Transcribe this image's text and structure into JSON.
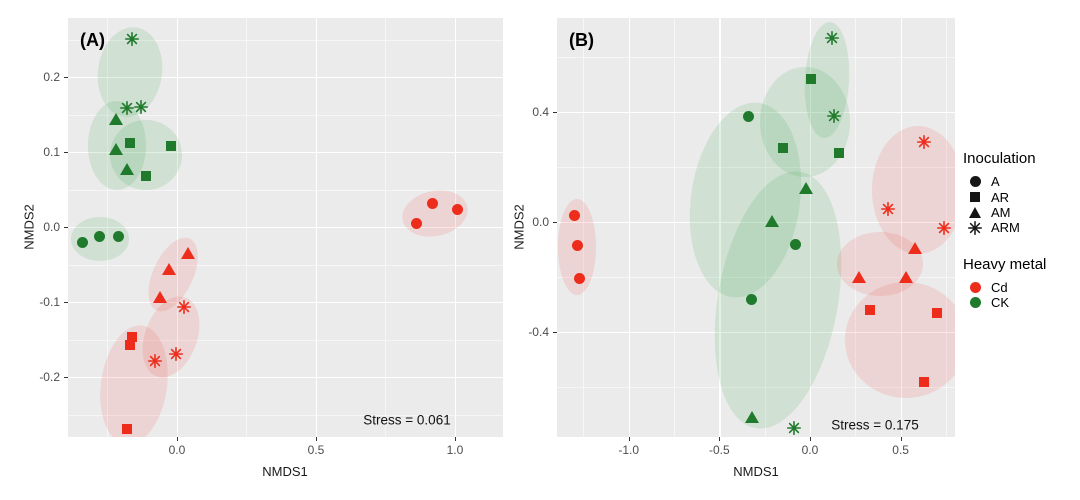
{
  "colors": {
    "cd": "#EE2C1C",
    "ck": "#1F7A2C",
    "cd_ellipse_fill": "rgba(240,80,70,0.14)",
    "ck_ellipse_fill": "rgba(70,170,85,0.16)",
    "panel_background": "#EBEBEB",
    "gridline": "#FFFFFF",
    "tick_text": "#4D4D4D",
    "legend_marker_black": "#151515"
  },
  "legend": {
    "inoculation_title": "Inoculation",
    "inoculation_items": [
      {
        "shape": "circle",
        "label": "A"
      },
      {
        "shape": "square",
        "label": "AR"
      },
      {
        "shape": "triangle",
        "label": "AM"
      },
      {
        "shape": "asterisk",
        "label": "ARM"
      }
    ],
    "metal_title": "Heavy metal",
    "metal_items": [
      {
        "label": "Cd",
        "color_key": "cd"
      },
      {
        "label": "CK",
        "color_key": "ck"
      }
    ]
  },
  "chart_data": [
    {
      "type": "scatter",
      "panel_label": "(A)",
      "stress_label": "Stress = 0.061",
      "xlabel": "NMDS1",
      "ylabel": "NMDS2",
      "xlim": [
        -0.392,
        1.173
      ],
      "ylim": [
        -0.28,
        0.2787
      ],
      "xticks": [
        {
          "v": 0.0,
          "label": "0.0"
        },
        {
          "v": 0.5,
          "label": "0.5"
        },
        {
          "v": 1.0,
          "label": "1.0"
        }
      ],
      "yticks": [
        {
          "v": 0.2,
          "label": "0.2"
        },
        {
          "v": 0.1,
          "label": "0.1"
        },
        {
          "v": 0.0,
          "label": "0.0"
        },
        {
          "v": -0.1,
          "label": "-0.1"
        },
        {
          "v": -0.2,
          "label": "-0.2"
        }
      ],
      "xminor": [
        -0.25,
        0.25,
        0.75
      ],
      "yminor": [
        0.25,
        0.15,
        0.05,
        -0.05,
        -0.15,
        -0.25
      ],
      "groups": [
        {
          "metal": "CK",
          "inoculation": "A",
          "shape": "circle",
          "points": [
            [
              -0.34,
              -0.021
            ],
            [
              -0.28,
              -0.013
            ],
            [
              -0.21,
              -0.013
            ]
          ]
        },
        {
          "metal": "CK",
          "inoculation": "AR",
          "shape": "square",
          "points": [
            [
              -0.17,
              0.112
            ],
            [
              -0.02,
              0.108
            ],
            [
              -0.11,
              0.068
            ]
          ]
        },
        {
          "metal": "CK",
          "inoculation": "AM",
          "shape": "triangle",
          "points": [
            [
              -0.22,
              0.143
            ],
            [
              -0.22,
              0.103
            ],
            [
              -0.18,
              0.077
            ]
          ]
        },
        {
          "metal": "CK",
          "inoculation": "ARM",
          "shape": "asterisk",
          "points": [
            [
              -0.16,
              0.251
            ],
            [
              -0.18,
              0.159
            ],
            [
              -0.13,
              0.16
            ]
          ]
        },
        {
          "metal": "Cd",
          "inoculation": "A",
          "shape": "circle",
          "points": [
            [
              0.86,
              0.005
            ],
            [
              0.92,
              0.032
            ],
            [
              1.01,
              0.024
            ]
          ]
        },
        {
          "metal": "Cd",
          "inoculation": "AR",
          "shape": "square",
          "points": [
            [
              -0.16,
              -0.146
            ],
            [
              -0.17,
              -0.157
            ],
            [
              -0.18,
              -0.269
            ]
          ]
        },
        {
          "metal": "Cd",
          "inoculation": "AM",
          "shape": "triangle",
          "points": [
            [
              0.04,
              -0.035
            ],
            [
              -0.03,
              -0.056
            ],
            [
              -0.06,
              -0.094
            ]
          ]
        },
        {
          "metal": "Cd",
          "inoculation": "ARM",
          "shape": "asterisk",
          "points": [
            [
              0.025,
              -0.107
            ],
            [
              -0.004,
              -0.169
            ],
            [
              -0.08,
              -0.179
            ]
          ]
        }
      ],
      "ellipses": [
        {
          "metal": "CK",
          "cx": -0.17,
          "cy": 0.207,
          "rx": 0.115,
          "ry": 0.06,
          "rot": 8
        },
        {
          "metal": "CK",
          "cx": -0.215,
          "cy": 0.109,
          "rx": 0.104,
          "ry": 0.059,
          "rot": 0
        },
        {
          "metal": "CK",
          "cx": -0.112,
          "cy": 0.096,
          "rx": 0.129,
          "ry": 0.047,
          "rot": 0
        },
        {
          "metal": "CK",
          "cx": -0.277,
          "cy": -0.016,
          "rx": 0.104,
          "ry": 0.029,
          "rot": 0
        },
        {
          "metal": "Cd",
          "cx": 0.928,
          "cy": 0.018,
          "rx": 0.119,
          "ry": 0.03,
          "rot": -12
        },
        {
          "metal": "Cd",
          "cx": -0.014,
          "cy": -0.064,
          "rx": 0.072,
          "ry": 0.053,
          "rot": 25
        },
        {
          "metal": "Cd",
          "cx": -0.02,
          "cy": -0.146,
          "rx": 0.094,
          "ry": 0.056,
          "rot": 20
        },
        {
          "metal": "Cd",
          "cx": -0.155,
          "cy": -0.211,
          "rx": 0.119,
          "ry": 0.08,
          "rot": 8
        }
      ]
    },
    {
      "type": "scatter",
      "panel_label": "(B)",
      "stress_label": "Stress = 0.175",
      "xlabel": "NMDS1",
      "ylabel": "NMDS2",
      "xlim": [
        -1.3955,
        0.8
      ],
      "ylim": [
        -0.7818,
        0.7418
      ],
      "xticks": [
        {
          "v": -1.0,
          "label": "-1.0"
        },
        {
          "v": -0.5,
          "label": "-0.5"
        },
        {
          "v": 0.0,
          "label": "0.0"
        },
        {
          "v": 0.5,
          "label": "0.5"
        }
      ],
      "yticks": [
        {
          "v": 0.4,
          "label": "0.4"
        },
        {
          "v": 0.0,
          "label": "0.0"
        },
        {
          "v": -0.4,
          "label": "-0.4"
        }
      ],
      "xminor": [
        -1.25,
        -0.75,
        -0.25,
        0.25,
        0.75
      ],
      "yminor": [
        0.6,
        0.2,
        -0.2,
        -0.6
      ],
      "groups": [
        {
          "metal": "Cd",
          "inoculation": "A",
          "shape": "circle",
          "points": [
            [
              -1.3,
              0.025
            ],
            [
              -1.28,
              -0.087
            ],
            [
              -1.27,
              -0.207
            ]
          ]
        },
        {
          "metal": "Cd",
          "inoculation": "AR",
          "shape": "square",
          "points": [
            [
              0.33,
              -0.32
            ],
            [
              0.7,
              -0.33
            ],
            [
              0.63,
              -0.58
            ]
          ]
        },
        {
          "metal": "Cd",
          "inoculation": "AM",
          "shape": "triangle",
          "points": [
            [
              0.58,
              -0.095
            ],
            [
              0.27,
              -0.2
            ],
            [
              0.53,
              -0.2
            ]
          ]
        },
        {
          "metal": "Cd",
          "inoculation": "ARM",
          "shape": "asterisk",
          "points": [
            [
              0.63,
              0.29
            ],
            [
              0.43,
              0.047
            ],
            [
              0.74,
              -0.022
            ]
          ]
        },
        {
          "metal": "CK",
          "inoculation": "A",
          "shape": "circle",
          "points": [
            [
              -0.34,
              0.385
            ],
            [
              -0.08,
              -0.08
            ],
            [
              -0.32,
              -0.28
            ]
          ]
        },
        {
          "metal": "CK",
          "inoculation": "AR",
          "shape": "square",
          "points": [
            [
              0.005,
              0.52
            ],
            [
              -0.15,
              0.27
            ],
            [
              0.16,
              0.25
            ]
          ]
        },
        {
          "metal": "CK",
          "inoculation": "AM",
          "shape": "triangle",
          "points": [
            [
              -0.02,
              0.12
            ],
            [
              -0.21,
              0.0
            ],
            [
              -0.32,
              -0.71
            ]
          ]
        },
        {
          "metal": "CK",
          "inoculation": "ARM",
          "shape": "asterisk",
          "points": [
            [
              0.12,
              0.67
            ],
            [
              0.13,
              0.385
            ],
            [
              -0.09,
              -0.75
            ]
          ]
        }
      ],
      "ellipses": [
        {
          "metal": "Cd",
          "cx": -1.285,
          "cy": -0.091,
          "rx": 0.105,
          "ry": 0.175,
          "rot": 0
        },
        {
          "metal": "CK",
          "cx": 0.094,
          "cy": 0.516,
          "rx": 0.121,
          "ry": 0.211,
          "rot": 3
        },
        {
          "metal": "CK",
          "cx": -0.028,
          "cy": 0.364,
          "rx": 0.248,
          "ry": 0.2,
          "rot": 0
        },
        {
          "metal": "CK",
          "cx": -0.359,
          "cy": 0.08,
          "rx": 0.3,
          "ry": 0.356,
          "rot": 8
        },
        {
          "metal": "CK",
          "cx": -0.177,
          "cy": -0.284,
          "rx": 0.33,
          "ry": 0.473,
          "rot": 10
        },
        {
          "metal": "Cd",
          "cx": 0.596,
          "cy": 0.116,
          "rx": 0.254,
          "ry": 0.233,
          "rot": 0
        },
        {
          "metal": "Cd",
          "cx": 0.386,
          "cy": -0.153,
          "rx": 0.237,
          "ry": 0.116,
          "rot": 0
        },
        {
          "metal": "Cd",
          "cx": 0.53,
          "cy": -0.429,
          "rx": 0.336,
          "ry": 0.211,
          "rot": 0
        }
      ]
    }
  ]
}
